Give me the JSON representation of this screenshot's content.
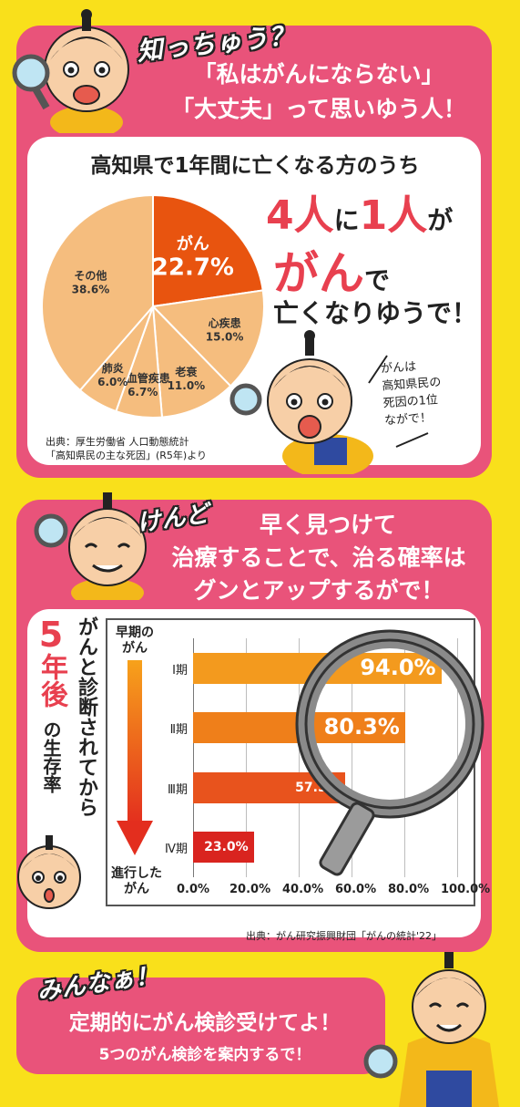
{
  "section1": {
    "exclaim": "知っちゅう？",
    "bubble_line1": "「私はがんにならない」",
    "bubble_line2": "「大丈夫」って思いゆう人！",
    "headline": "高知県で1年間に亡くなる方のうち",
    "big_num1": "4人",
    "mid_ni": "に",
    "big_num2": "1人",
    "mid_ga": "が",
    "big_gan": "がん",
    "mid_de": "で",
    "closing": "亡くなりゆうで！",
    "note": [
      "がんは",
      "高知県民の",
      "死因の1位",
      "ながで！"
    ],
    "source_line1": "出典：厚生労働省 人口動態統計",
    "source_line2": "「高知県民の主な死因」(R5年)より"
  },
  "pie_chart": {
    "type": "pie",
    "slices": [
      {
        "label": "がん",
        "value": 22.7,
        "value_text": "22.7%",
        "color": "#e8540f"
      },
      {
        "label": "心疾患",
        "value": 15.0,
        "value_text": "15.0%",
        "color": "#f5bd7e"
      },
      {
        "label": "老衰",
        "value": 11.0,
        "value_text": "11.0%",
        "color": "#f5bd7e"
      },
      {
        "label": "脳血管疾患",
        "value": 6.7,
        "value_text": "6.7%",
        "color": "#f5bd7e"
      },
      {
        "label": "肺炎",
        "value": 6.0,
        "value_text": "6.0%",
        "color": "#f5bd7e"
      },
      {
        "label": "その他",
        "value": 38.6,
        "value_text": "38.6%",
        "color": "#f5bd7e"
      }
    ]
  },
  "section2": {
    "exclaim": "けんど",
    "bubble_line1": "早く見つけて",
    "bubble_line2": "治療することで、治る確率は",
    "bubble_line3": "グンとアップするがで！",
    "five": "5",
    "year_after": "年後",
    "survival_suffix": "の生存率",
    "vertical_label": "がんと診断されてから",
    "early_label": "早期の\nがん",
    "late_label": "進行した\nがん",
    "source": "出典：がん研究振興財団「がんの統計'22」"
  },
  "chart_data": {
    "type": "bar",
    "orientation": "horizontal",
    "categories": [
      "Ⅰ期",
      "Ⅱ期",
      "Ⅲ期",
      "Ⅳ期"
    ],
    "values": [
      94.0,
      80.3,
      57.5,
      23.0
    ],
    "value_labels": [
      "94.0%",
      "80.3%",
      "57.5%",
      "23.0%"
    ],
    "colors": [
      "#f39a1e",
      "#ef7f1a",
      "#e8531d",
      "#d9241f"
    ],
    "xlim": [
      0,
      100
    ],
    "xticks": [
      "0.0%",
      "20.0%",
      "40.0%",
      "60.0%",
      "80.0%",
      "100.0%"
    ],
    "grid": true
  },
  "section3": {
    "exclaim": "みんなぁ！",
    "bubble_line1": "定期的にがん検診受けてよ！",
    "bubble_line2": "5つのがん検診を案内するで！"
  }
}
